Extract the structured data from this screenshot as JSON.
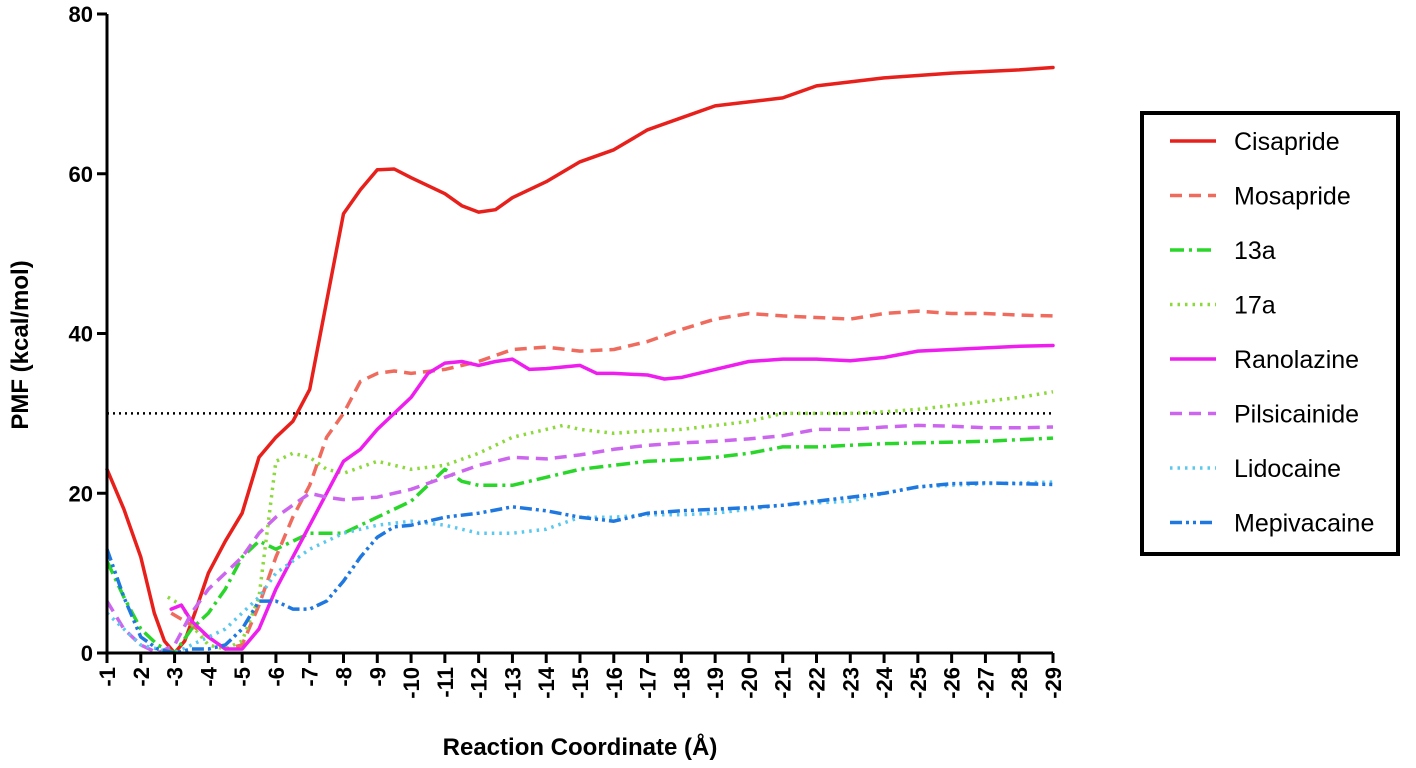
{
  "chart_data": {
    "type": "line",
    "title": "",
    "xlabel": "Reaction Coordinate (Å)",
    "ylabel": "PMF  (kcal/mol)",
    "xlim": [
      -1,
      -29
    ],
    "ylim": [
      0,
      80
    ],
    "x_ticks": [
      -1,
      -2,
      -3,
      -4,
      -5,
      -6,
      -7,
      -8,
      -9,
      -10,
      -11,
      -12,
      -13,
      -14,
      -15,
      -16,
      -17,
      -18,
      -19,
      -20,
      -21,
      -22,
      -23,
      -24,
      -25,
      -26,
      -27,
      -28,
      -29
    ],
    "y_ticks": [
      0,
      20,
      40,
      60,
      80
    ],
    "grid": false,
    "legend_position": "right",
    "reference_line": {
      "y": 30,
      "style": "dotted",
      "color": "#000000"
    },
    "series": [
      {
        "name": "Cisapride",
        "color": "#e8201c",
        "dash": "solid",
        "points": [
          [
            -1,
            23
          ],
          [
            -1.5,
            18
          ],
          [
            -2,
            12
          ],
          [
            -2.4,
            5
          ],
          [
            -2.7,
            1.5
          ],
          [
            -3,
            0
          ],
          [
            -3.3,
            1.5
          ],
          [
            -3.6,
            5
          ],
          [
            -4,
            10
          ],
          [
            -4.5,
            14
          ],
          [
            -5,
            17.5
          ],
          [
            -5.5,
            24.5
          ],
          [
            -6,
            27
          ],
          [
            -6.5,
            29
          ],
          [
            -7,
            33
          ],
          [
            -7.5,
            44
          ],
          [
            -8,
            55
          ],
          [
            -8.5,
            58
          ],
          [
            -9,
            60.5
          ],
          [
            -9.5,
            60.6
          ],
          [
            -10,
            59.5
          ],
          [
            -10.5,
            58.5
          ],
          [
            -11,
            57.5
          ],
          [
            -11.5,
            56
          ],
          [
            -12,
            55.2
          ],
          [
            -12.5,
            55.5
          ],
          [
            -13,
            57
          ],
          [
            -14,
            59
          ],
          [
            -15,
            61.5
          ],
          [
            -16,
            63
          ],
          [
            -17,
            65.5
          ],
          [
            -18,
            67
          ],
          [
            -19,
            68.5
          ],
          [
            -20,
            69
          ],
          [
            -21,
            69.5
          ],
          [
            -22,
            71
          ],
          [
            -23,
            71.5
          ],
          [
            -24,
            72
          ],
          [
            -25,
            72.3
          ],
          [
            -26,
            72.6
          ],
          [
            -27,
            72.8
          ],
          [
            -28,
            73
          ],
          [
            -29,
            73.3
          ]
        ]
      },
      {
        "name": "Mosapride",
        "color": "#ef6b5e",
        "dash": "dashed",
        "points": [
          [
            -2.9,
            5
          ],
          [
            -3.1,
            4.5
          ],
          [
            -3.5,
            3.5
          ],
          [
            -4,
            2
          ],
          [
            -4.5,
            0.5
          ],
          [
            -5,
            1
          ],
          [
            -5.5,
            6
          ],
          [
            -6,
            12
          ],
          [
            -6.5,
            17
          ],
          [
            -7,
            21
          ],
          [
            -7.5,
            27
          ],
          [
            -8,
            30
          ],
          [
            -8.5,
            34
          ],
          [
            -9,
            35
          ],
          [
            -9.5,
            35.3
          ],
          [
            -10,
            35
          ],
          [
            -11,
            35.5
          ],
          [
            -12,
            36.5
          ],
          [
            -13,
            38
          ],
          [
            -14,
            38.3
          ],
          [
            -15,
            37.8
          ],
          [
            -16,
            38
          ],
          [
            -17,
            39
          ],
          [
            -18,
            40.5
          ],
          [
            -19,
            41.8
          ],
          [
            -20,
            42.5
          ],
          [
            -21,
            42.2
          ],
          [
            -22,
            42
          ],
          [
            -23,
            41.8
          ],
          [
            -24,
            42.5
          ],
          [
            -25,
            42.8
          ],
          [
            -26,
            42.5
          ],
          [
            -27,
            42.5
          ],
          [
            -28,
            42.3
          ],
          [
            -29,
            42.2
          ]
        ]
      },
      {
        "name": "13a",
        "color": "#2ad62a",
        "dash": "dashdot",
        "points": [
          [
            -1,
            11.5
          ],
          [
            -1.5,
            7
          ],
          [
            -2,
            3
          ],
          [
            -2.5,
            1
          ],
          [
            -3,
            0
          ],
          [
            -3.5,
            3
          ],
          [
            -4,
            5
          ],
          [
            -4.5,
            8
          ],
          [
            -5,
            12
          ],
          [
            -5.5,
            14
          ],
          [
            -6,
            13
          ],
          [
            -6.5,
            14
          ],
          [
            -7,
            15
          ],
          [
            -8,
            15
          ],
          [
            -9,
            17
          ],
          [
            -10,
            19
          ],
          [
            -11,
            23
          ],
          [
            -11.5,
            21.5
          ],
          [
            -12,
            21
          ],
          [
            -13,
            21
          ],
          [
            -14,
            22
          ],
          [
            -15,
            23
          ],
          [
            -16,
            23.5
          ],
          [
            -17,
            24
          ],
          [
            -18,
            24.2
          ],
          [
            -19,
            24.5
          ],
          [
            -20,
            25
          ],
          [
            -21,
            25.8
          ],
          [
            -22,
            25.8
          ],
          [
            -23,
            26
          ],
          [
            -24,
            26.2
          ],
          [
            -25,
            26.3
          ],
          [
            -26,
            26.4
          ],
          [
            -27,
            26.5
          ],
          [
            -28,
            26.7
          ],
          [
            -29,
            26.9
          ]
        ]
      },
      {
        "name": "17a",
        "color": "#8cd93c",
        "dash": "dotted",
        "points": [
          [
            -2.8,
            7
          ],
          [
            -3.2,
            6
          ],
          [
            -3.6,
            3
          ],
          [
            -4,
            1
          ],
          [
            -4.5,
            0.5
          ],
          [
            -5,
            1.5
          ],
          [
            -5.5,
            7
          ],
          [
            -6,
            24
          ],
          [
            -6.5,
            25
          ],
          [
            -7,
            24.5
          ],
          [
            -7.5,
            23
          ],
          [
            -8,
            22.5
          ],
          [
            -9,
            24
          ],
          [
            -10,
            23
          ],
          [
            -11,
            23.5
          ],
          [
            -12,
            25
          ],
          [
            -13,
            27
          ],
          [
            -14,
            28
          ],
          [
            -14.5,
            28.5
          ],
          [
            -15,
            28
          ],
          [
            -16,
            27.5
          ],
          [
            -17,
            27.8
          ],
          [
            -18,
            28
          ],
          [
            -19,
            28.5
          ],
          [
            -20,
            29
          ],
          [
            -21,
            30
          ],
          [
            -22,
            30
          ],
          [
            -23,
            30
          ],
          [
            -24,
            30.2
          ],
          [
            -25,
            30.5
          ],
          [
            -26,
            31
          ],
          [
            -27,
            31.5
          ],
          [
            -28,
            32
          ],
          [
            -29,
            32.7
          ]
        ]
      },
      {
        "name": "Ranolazine",
        "color": "#ee1eee",
        "dash": "solid",
        "points": [
          [
            -2.9,
            5.5
          ],
          [
            -3.2,
            6
          ],
          [
            -3.5,
            4
          ],
          [
            -4,
            2
          ],
          [
            -4.5,
            0.5
          ],
          [
            -5,
            0.5
          ],
          [
            -5.5,
            3
          ],
          [
            -6,
            8
          ],
          [
            -6.5,
            12
          ],
          [
            -7,
            16
          ],
          [
            -7.5,
            20
          ],
          [
            -8,
            24
          ],
          [
            -8.5,
            25.5
          ],
          [
            -9,
            28
          ],
          [
            -9.5,
            30
          ],
          [
            -10,
            32
          ],
          [
            -10.5,
            35
          ],
          [
            -11,
            36.3
          ],
          [
            -11.5,
            36.5
          ],
          [
            -12,
            36
          ],
          [
            -12.5,
            36.5
          ],
          [
            -13,
            36.8
          ],
          [
            -13.5,
            35.5
          ],
          [
            -14,
            35.6
          ],
          [
            -15,
            36
          ],
          [
            -15.5,
            35
          ],
          [
            -16,
            35
          ],
          [
            -17,
            34.8
          ],
          [
            -17.5,
            34.3
          ],
          [
            -18,
            34.5
          ],
          [
            -19,
            35.5
          ],
          [
            -20,
            36.5
          ],
          [
            -21,
            36.8
          ],
          [
            -22,
            36.8
          ],
          [
            -23,
            36.6
          ],
          [
            -24,
            37
          ],
          [
            -25,
            37.8
          ],
          [
            -26,
            38
          ],
          [
            -27,
            38.2
          ],
          [
            -28,
            38.4
          ],
          [
            -29,
            38.5
          ]
        ]
      },
      {
        "name": "Pilsicainide",
        "color": "#cc66ee",
        "dash": "dashed",
        "points": [
          [
            -1,
            6.5
          ],
          [
            -1.5,
            3
          ],
          [
            -2,
            1
          ],
          [
            -2.5,
            0
          ],
          [
            -3,
            1
          ],
          [
            -3.5,
            5
          ],
          [
            -4,
            8
          ],
          [
            -4.5,
            10
          ],
          [
            -5,
            12
          ],
          [
            -5.5,
            15
          ],
          [
            -6,
            17
          ],
          [
            -6.5,
            18.5
          ],
          [
            -7,
            20
          ],
          [
            -7.5,
            19.5
          ],
          [
            -8,
            19.2
          ],
          [
            -9,
            19.5
          ],
          [
            -10,
            20.5
          ],
          [
            -11,
            22
          ],
          [
            -12,
            23.5
          ],
          [
            -13,
            24.5
          ],
          [
            -14,
            24.3
          ],
          [
            -15,
            24.8
          ],
          [
            -16,
            25.5
          ],
          [
            -17,
            26
          ],
          [
            -18,
            26.3
          ],
          [
            -19,
            26.5
          ],
          [
            -20,
            26.8
          ],
          [
            -21,
            27.2
          ],
          [
            -22,
            28
          ],
          [
            -23,
            28
          ],
          [
            -24,
            28.3
          ],
          [
            -25,
            28.5
          ],
          [
            -26,
            28.4
          ],
          [
            -27,
            28.2
          ],
          [
            -28,
            28.2
          ],
          [
            -29,
            28.3
          ]
        ]
      },
      {
        "name": "Lidocaine",
        "color": "#5bc8ee",
        "dash": "dotted",
        "points": [
          [
            -1,
            5
          ],
          [
            -1.5,
            3
          ],
          [
            -2,
            1
          ],
          [
            -2.5,
            0.5
          ],
          [
            -3,
            0
          ],
          [
            -3.5,
            1
          ],
          [
            -4,
            2
          ],
          [
            -4.5,
            3
          ],
          [
            -5,
            5
          ],
          [
            -5.5,
            7
          ],
          [
            -6,
            10
          ],
          [
            -7,
            13
          ],
          [
            -8,
            15
          ],
          [
            -9,
            16
          ],
          [
            -10,
            16.5
          ],
          [
            -11,
            16
          ],
          [
            -12,
            15
          ],
          [
            -13,
            15
          ],
          [
            -14,
            15.5
          ],
          [
            -15,
            17
          ],
          [
            -16,
            17
          ],
          [
            -17,
            17.3
          ],
          [
            -18,
            17.3
          ],
          [
            -19,
            17.5
          ],
          [
            -20,
            18
          ],
          [
            -21,
            18.5
          ],
          [
            -22,
            18.8
          ],
          [
            -23,
            19
          ],
          [
            -24,
            20
          ],
          [
            -25,
            20.8
          ],
          [
            -26,
            21
          ],
          [
            -27,
            21.2
          ],
          [
            -28,
            21.3
          ],
          [
            -29,
            21.4
          ]
        ]
      },
      {
        "name": "Mepivacaine",
        "color": "#1f78e0",
        "dash": "dashdotdot",
        "points": [
          [
            -1,
            13
          ],
          [
            -1.5,
            7
          ],
          [
            -2,
            2
          ],
          [
            -2.5,
            0.5
          ],
          [
            -3,
            0
          ],
          [
            -3.5,
            0.5
          ],
          [
            -4,
            0.5
          ],
          [
            -4.5,
            1
          ],
          [
            -5,
            3
          ],
          [
            -5.5,
            6.5
          ],
          [
            -6,
            6.5
          ],
          [
            -6.5,
            5.5
          ],
          [
            -7,
            5.5
          ],
          [
            -7.5,
            6.5
          ],
          [
            -8,
            9
          ],
          [
            -8.5,
            12
          ],
          [
            -9,
            14.5
          ],
          [
            -9.5,
            15.8
          ],
          [
            -10,
            16
          ],
          [
            -11,
            17
          ],
          [
            -12,
            17.5
          ],
          [
            -13,
            18.3
          ],
          [
            -14,
            17.8
          ],
          [
            -15,
            17
          ],
          [
            -16,
            16.5
          ],
          [
            -17,
            17.5
          ],
          [
            -18,
            17.8
          ],
          [
            -19,
            18
          ],
          [
            -20,
            18.2
          ],
          [
            -21,
            18.5
          ],
          [
            -22,
            19
          ],
          [
            -23,
            19.5
          ],
          [
            -24,
            20
          ],
          [
            -25,
            20.8
          ],
          [
            -26,
            21.2
          ],
          [
            -27,
            21.3
          ],
          [
            -28,
            21.2
          ],
          [
            -29,
            21.1
          ]
        ]
      }
    ]
  }
}
